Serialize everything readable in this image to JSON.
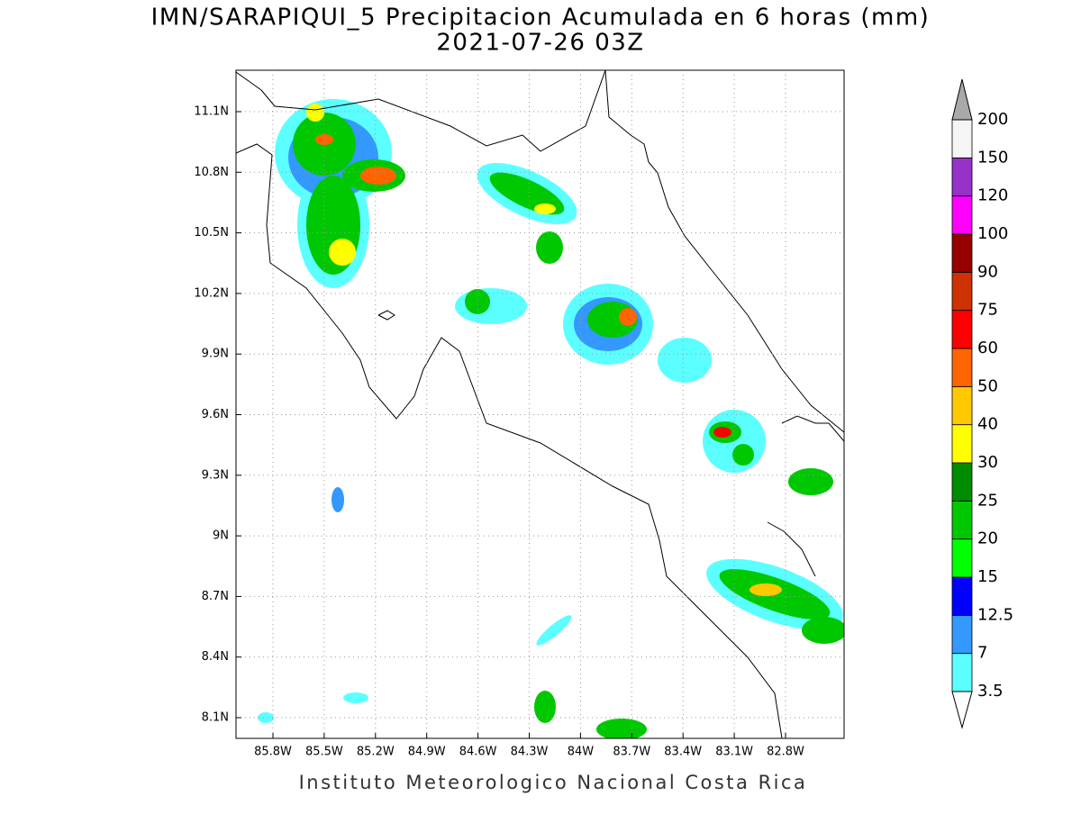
{
  "title": "IMN/SARAPIQUI_5 Precipitacion Acumulada en 6 horas (mm)",
  "subtitle": "2021-07-26 03Z",
  "map": {
    "xticks": [
      "85.8W",
      "85.5W",
      "85.2W",
      "84.9W",
      "84.6W",
      "84.3W",
      "84W",
      "83.7W",
      "83.4W",
      "83.1W",
      "82.8W"
    ],
    "yticks": [
      "11.1N",
      "10.8N",
      "10.5N",
      "10.2N",
      "9.9N",
      "9.6N",
      "9.3N",
      "9N",
      "8.7N",
      "8.4N",
      "8.1N"
    ]
  },
  "colorbar": {
    "levels": [
      3.5,
      7,
      12.5,
      15,
      20,
      25,
      30,
      40,
      50,
      60,
      75,
      90,
      100,
      120,
      150,
      200
    ],
    "colors": [
      "#5bffff",
      "#3399ff",
      "#0000ff",
      "#00ff00",
      "#00c800",
      "#008c00",
      "#ffff00",
      "#ffc800",
      "#ff6400",
      "#ff0000",
      "#cd3200",
      "#960000",
      "#ff00ff",
      "#9632c8",
      "#f5f5f5"
    ],
    "over_color": "#a9a9a9",
    "under_color": "#ffffff"
  },
  "footer": "Instituto Meteorologico Nacional Costa Rica"
}
